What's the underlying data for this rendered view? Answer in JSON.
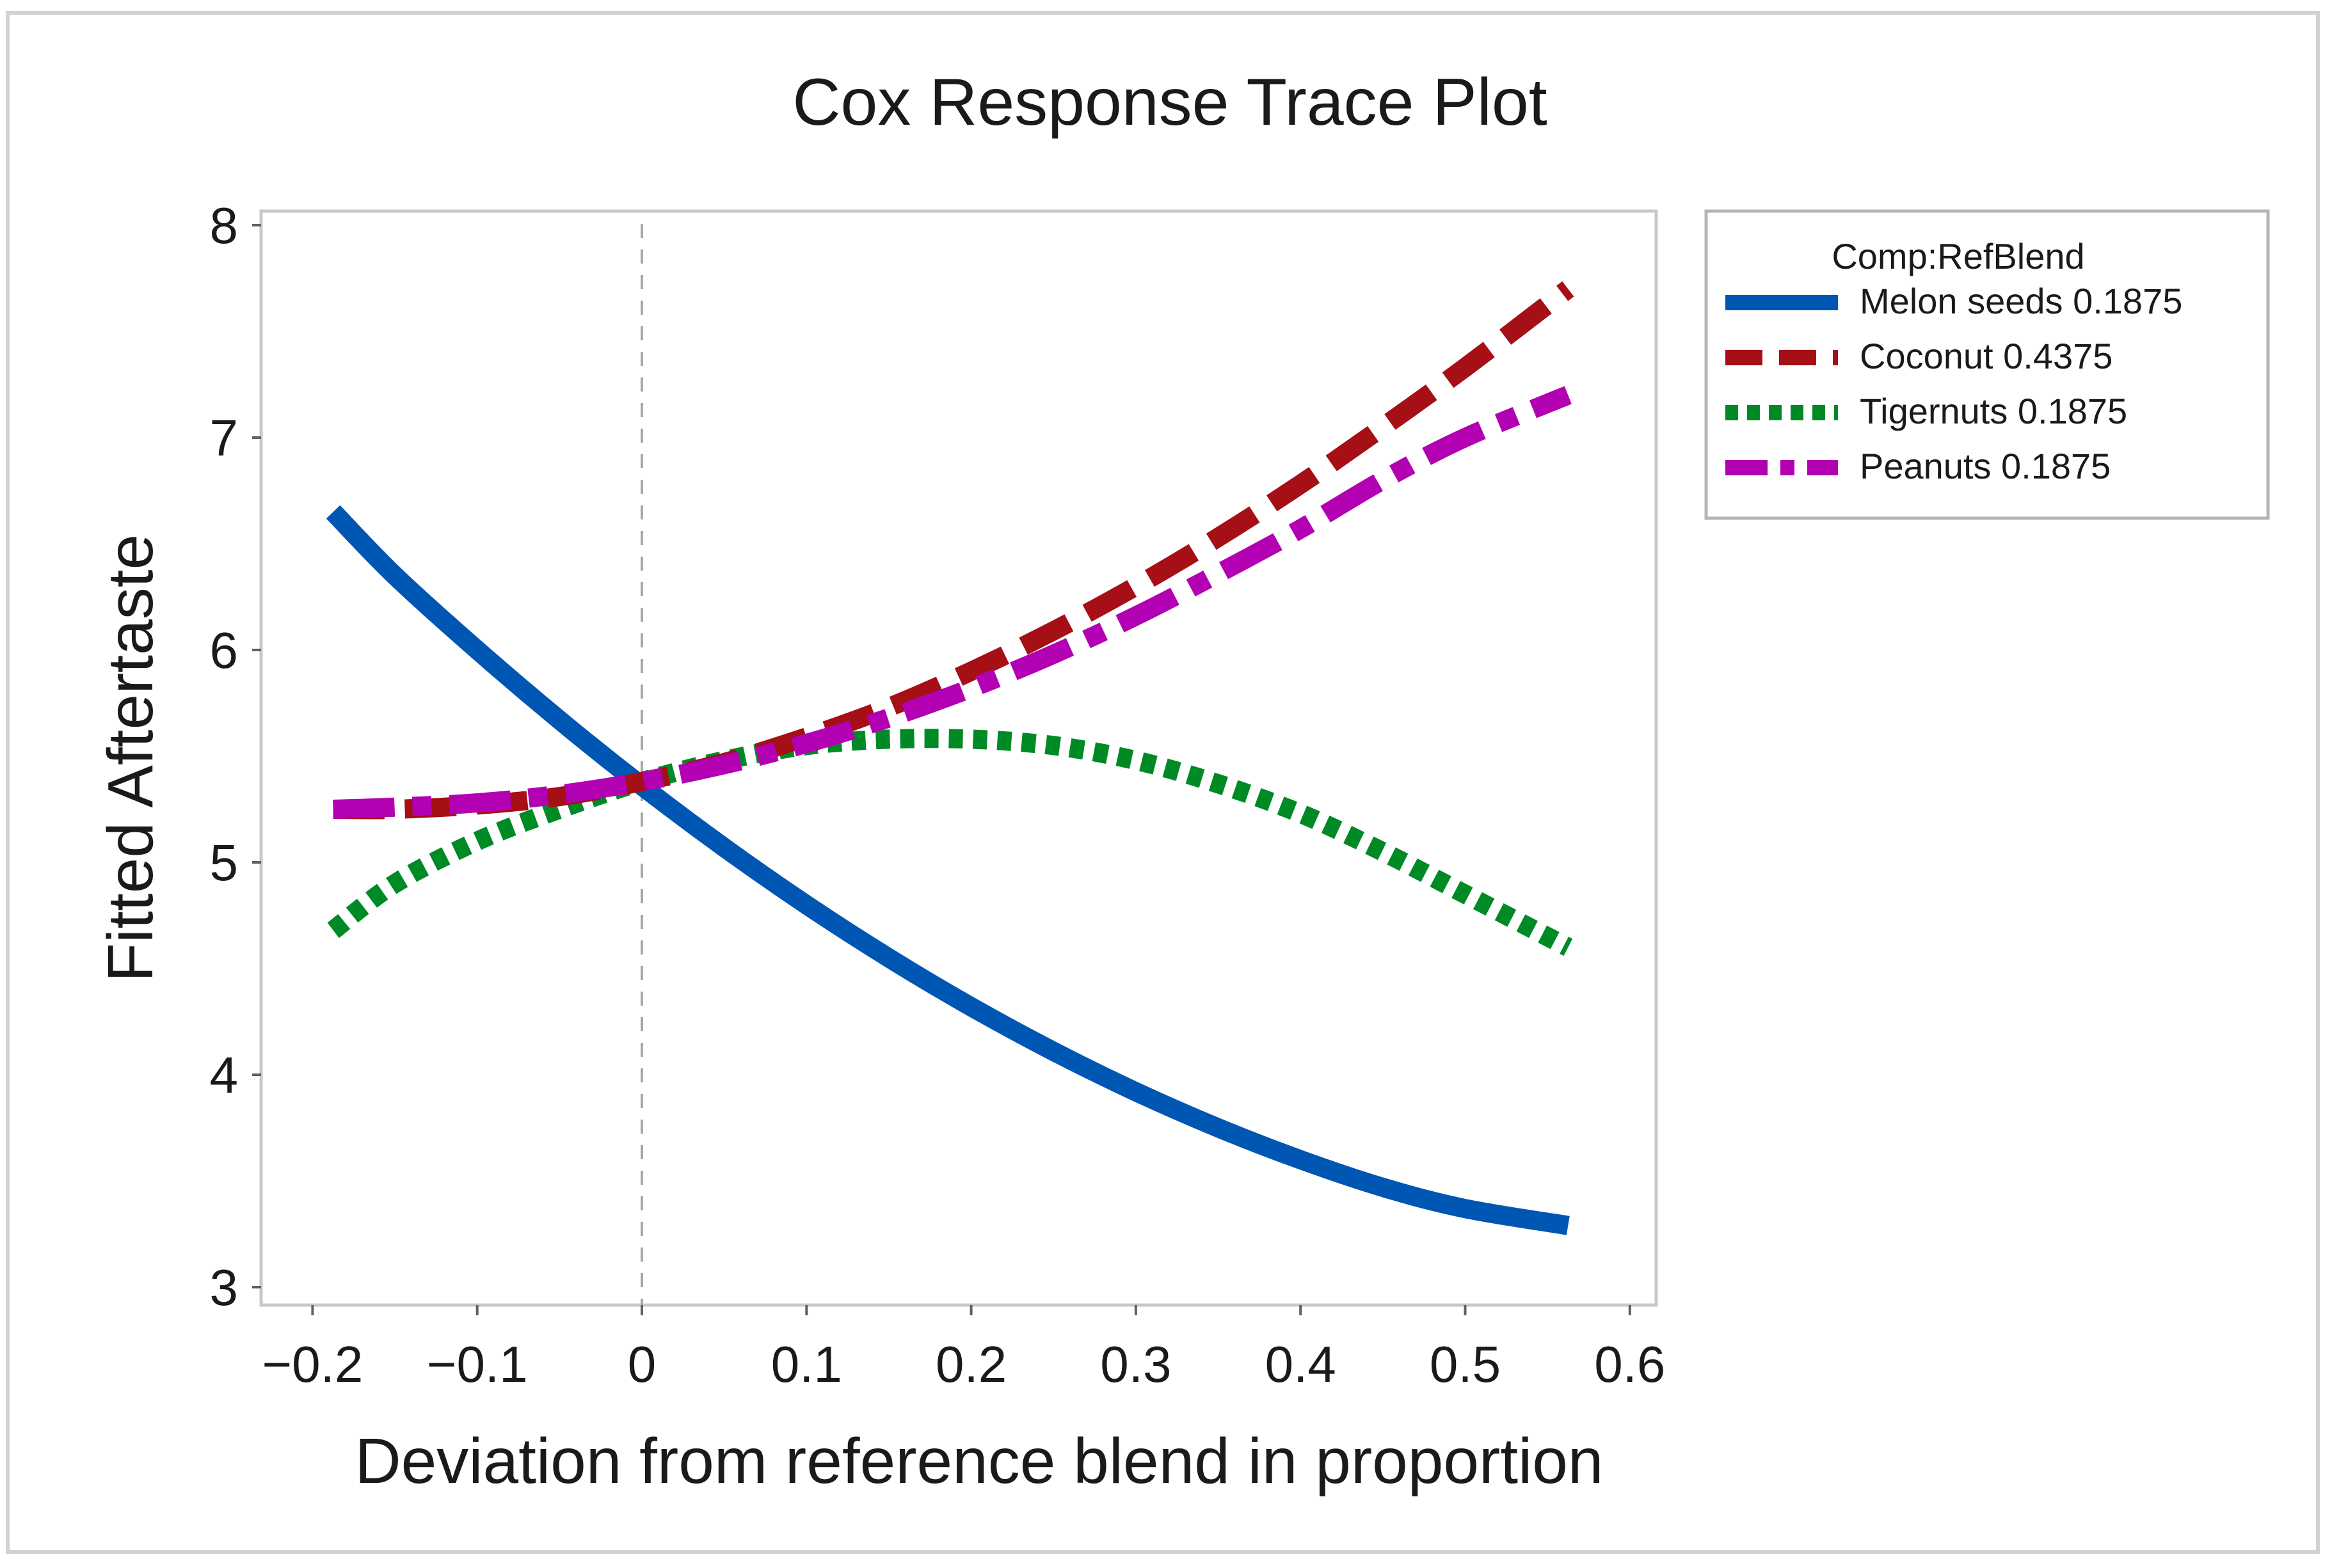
{
  "chart_data": {
    "type": "line",
    "title": "Cox Response Trace Plot",
    "xlabel": "Deviation from reference blend in proportion",
    "ylabel": "Fitted Aftertaste",
    "xlim": [
      -0.2,
      0.6
    ],
    "ylim": [
      3,
      8
    ],
    "x_ticks": [
      -0.2,
      -0.1,
      0,
      0.1,
      0.2,
      0.3,
      0.4,
      0.5,
      0.6
    ],
    "x_tick_labels": [
      "−0.2",
      "−0.1",
      "0",
      "0.1",
      "0.2",
      "0.3",
      "0.4",
      "0.5",
      "0.6"
    ],
    "y_ticks": [
      3,
      4,
      5,
      6,
      7,
      8
    ],
    "y_tick_labels": [
      "3",
      "4",
      "5",
      "6",
      "7",
      "8"
    ],
    "reference_line_x": 0,
    "grid": false,
    "legend": {
      "title": "Comp:RefBlend",
      "placement": "outside-right"
    },
    "series": [
      {
        "name": "Melon seeds",
        "label": "Melon seeds  0.1875",
        "color": "#0056b3",
        "style": "solid",
        "x": [
          -0.1875,
          -0.15,
          -0.1,
          -0.05,
          0,
          0.05,
          0.1,
          0.15,
          0.2,
          0.25,
          0.3,
          0.35,
          0.4,
          0.45,
          0.5,
          0.5625
        ],
        "values": [
          6.65,
          6.35,
          6.0,
          5.67,
          5.36,
          5.07,
          4.8,
          4.55,
          4.32,
          4.11,
          3.92,
          3.75,
          3.6,
          3.47,
          3.37,
          3.29
        ]
      },
      {
        "name": "Coconut",
        "label": "Coconut  0.4375",
        "color": "#a50f15",
        "style": "dashed",
        "x": [
          -0.1875,
          -0.15,
          -0.1,
          -0.05,
          0,
          0.05,
          0.1,
          0.15,
          0.2,
          0.25,
          0.3,
          0.35,
          0.4,
          0.45,
          0.5,
          0.5625
        ],
        "values": [
          5.25,
          5.25,
          5.27,
          5.31,
          5.38,
          5.47,
          5.59,
          5.73,
          5.9,
          6.09,
          6.3,
          6.53,
          6.78,
          7.05,
          7.33,
          7.7
        ]
      },
      {
        "name": "Tigernuts",
        "label": "Tigernuts  0.1875",
        "color": "#008a26",
        "style": "dotted",
        "x": [
          -0.1875,
          -0.15,
          -0.1,
          -0.05,
          0,
          0.05,
          0.1,
          0.15,
          0.2,
          0.25,
          0.3,
          0.35,
          0.4,
          0.45,
          0.5,
          0.5625
        ],
        "values": [
          4.68,
          4.9,
          5.1,
          5.25,
          5.38,
          5.48,
          5.55,
          5.58,
          5.58,
          5.55,
          5.48,
          5.37,
          5.23,
          5.05,
          4.85,
          4.6
        ]
      },
      {
        "name": "Peanuts",
        "label": "Peanuts  0.1875",
        "color": "#b200b2",
        "style": "dashdot",
        "x": [
          -0.1875,
          -0.15,
          -0.1,
          -0.05,
          0,
          0.05,
          0.1,
          0.15,
          0.2,
          0.25,
          0.3,
          0.35,
          0.4,
          0.45,
          0.5,
          0.5625
        ],
        "values": [
          5.25,
          5.26,
          5.28,
          5.32,
          5.38,
          5.46,
          5.56,
          5.68,
          5.82,
          5.98,
          6.16,
          6.36,
          6.57,
          6.8,
          7.0,
          7.2
        ]
      }
    ]
  }
}
